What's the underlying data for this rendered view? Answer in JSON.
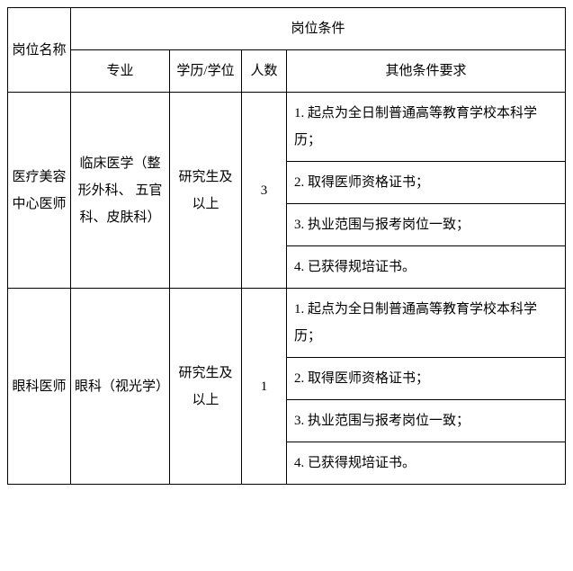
{
  "table": {
    "headers": {
      "position_name": "岗位名称",
      "position_conditions": "岗位条件",
      "major": "专业",
      "education": "学历/学位",
      "count": "人数",
      "other": "其他条件要求"
    },
    "rows": [
      {
        "position": "医疗美容中心医师",
        "major": "临床医学（整形外科、 五官科、皮肤科）",
        "education": "研究生及以上",
        "count": "3",
        "requirements": [
          "1. 起点为全日制普通高等教育学校本科学历；",
          "2. 取得医师资格证书；",
          "3. 执业范围与报考岗位一致；",
          "4. 已获得规培证书。"
        ]
      },
      {
        "position": "眼科医师",
        "major": "眼科（视光学）",
        "education": "研究生及以上",
        "count": "1",
        "requirements": [
          "1. 起点为全日制普通高等教育学校本科学历；",
          "2. 取得医师资格证书；",
          "3. 执业范围与报考岗位一致；",
          "4. 已获得规培证书。"
        ]
      }
    ]
  },
  "styling": {
    "border_color": "#000000",
    "background_color": "#ffffff",
    "text_color": "#000000",
    "font_size": 15,
    "font_family": "SimSun"
  }
}
